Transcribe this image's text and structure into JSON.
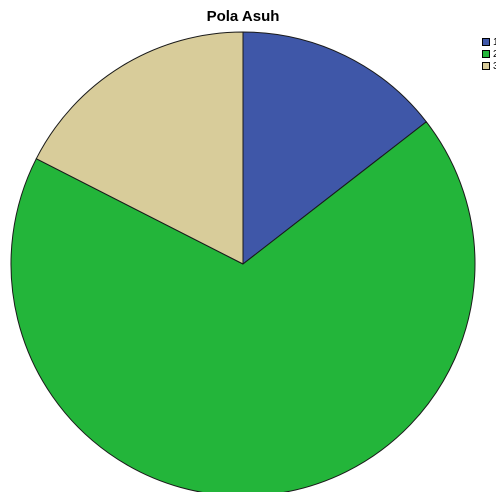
{
  "chart_data": {
    "type": "pie",
    "title": "Pola Asuh",
    "categories": [
      "1",
      "2",
      "3"
    ],
    "values": [
      14.5,
      68.0,
      17.5
    ],
    "colors": [
      "#3f57a8",
      "#23b53a",
      "#d8cc9a"
    ],
    "start_angle_deg": 0,
    "direction": "clockwise",
    "legend_position": "top-right"
  }
}
